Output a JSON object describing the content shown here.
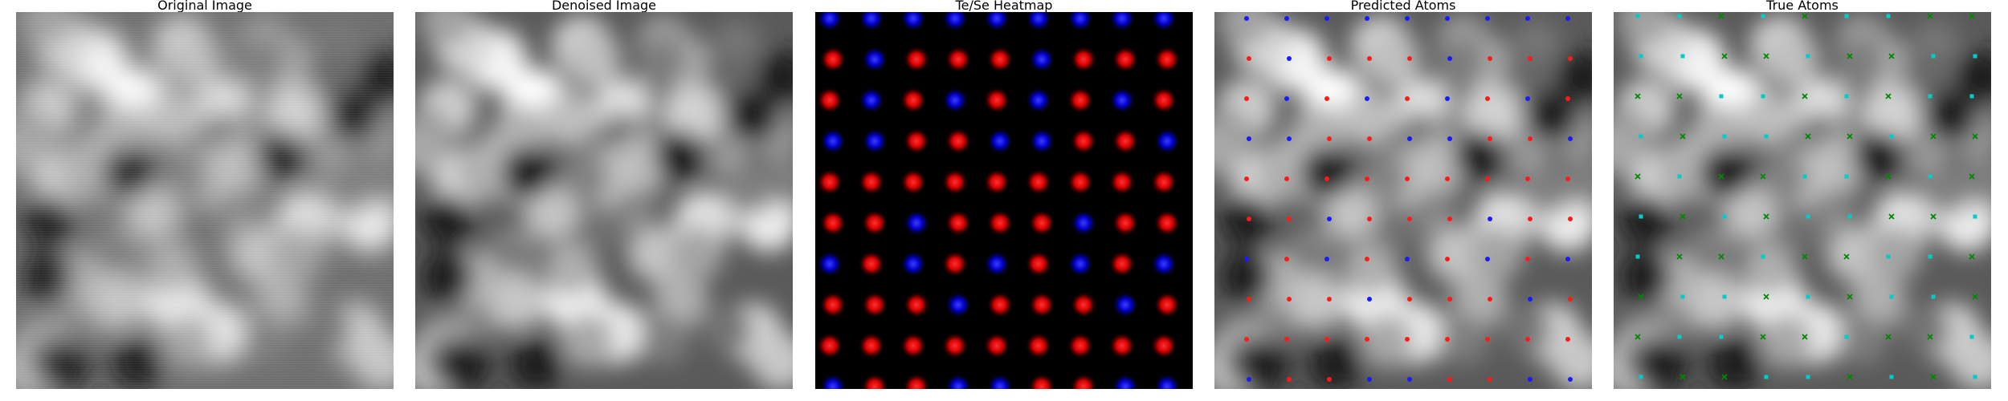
{
  "panels": [
    {
      "title": "Original Image"
    },
    {
      "title": "Denoised Image"
    },
    {
      "title": "Te/Se Heatmap"
    },
    {
      "title": "Predicted Atoms"
    },
    {
      "title": "True Atoms"
    }
  ],
  "colors": {
    "te": "#ff1a1a",
    "se": "#1a1aff",
    "true_te": "#00cccc",
    "true_se": "#008800",
    "background": "#000000"
  },
  "icons": {
    "predicted_marker": "dot",
    "true_marker_cyan": "square",
    "true_marker_green": "x"
  }
}
